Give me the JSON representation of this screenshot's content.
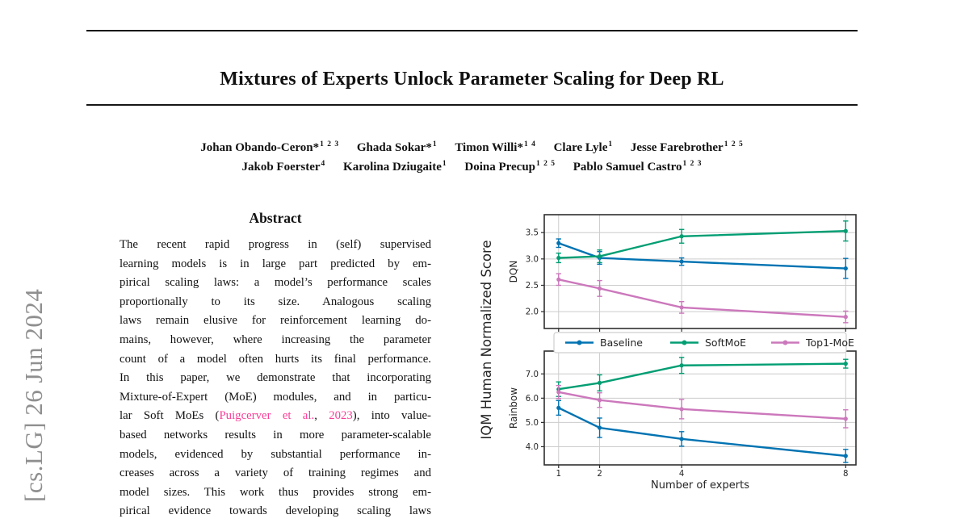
{
  "arxiv_stamp": "[cs.LG]  26 Jun 2024",
  "title": "Mixtures of Experts Unlock Parameter Scaling for Deep RL",
  "authors": {
    "line1": [
      {
        "name": "Johan Obando-Ceron*",
        "sup": "1 2 3"
      },
      {
        "name": "Ghada Sokar*",
        "sup": "1"
      },
      {
        "name": "Timon Willi*",
        "sup": "1 4"
      },
      {
        "name": "Clare Lyle",
        "sup": "1"
      },
      {
        "name": "Jesse Farebrother",
        "sup": "1 2 5"
      }
    ],
    "line2": [
      {
        "name": "Jakob Foerster",
        "sup": "4"
      },
      {
        "name": "Karolina Dziugaite",
        "sup": "1"
      },
      {
        "name": "Doina Precup",
        "sup": "1 2 5"
      },
      {
        "name": "Pablo Samuel Castro",
        "sup": "1 2 3"
      }
    ]
  },
  "abstract": {
    "heading": "Abstract",
    "lines_before": "The recent rapid progress in (self) supervised\nlearning models is in large part predicted by em-\npirical scaling laws: a model’s performance scales\nproportionally to its size.  Analogous scaling\nlaws remain elusive for reinforcement learning do-\nmains, however, where increasing the parameter\ncount of a model often hurts its final performance.\nIn this paper, we demonstrate that incorporating\nMixture-of-Expert (MoE) modules, and in particu-\nlar Soft MoEs (",
    "citation_authors": "Puigcerver et al.",
    "citation_separator": ", ",
    "citation_year": "2023",
    "lines_after": "), into value-\nbased networks results in more parameter-scalable\nmodels, evidenced by substantial performance in-\ncreases across a variety of training regimes and\nmodel sizes. This work thus provides strong em-\npirical evidence towards developing scaling laws"
  },
  "colors": {
    "citation_link": "#fa3d96",
    "stamp_gray": "#8f8f8f",
    "baseline_blue": "#0173b2",
    "softmoe_green": "#029e73",
    "top1moe_pink": "#cc78bc",
    "grid_gray": "#cccccc",
    "frame_gray": "#2e2e2e"
  },
  "figure": {
    "shared_ylabel": "IQM Human Normalized Score",
    "xlabel": "Number of experts",
    "legend": [
      {
        "label": "Baseline",
        "color": "#0173b2"
      },
      {
        "label": "SoftMoE",
        "color": "#029e73"
      },
      {
        "label": "Top1-MoE",
        "color": "#cc78bc"
      }
    ]
  },
  "chart_data": [
    {
      "type": "line",
      "panel_label": "DQN",
      "xscale": "linear",
      "x": [
        1,
        2,
        4,
        8
      ],
      "xticks": [
        1,
        2,
        4,
        8
      ],
      "show_x_tick_labels": false,
      "xlim": [
        0.65,
        8.25
      ],
      "ylim": [
        1.68,
        3.84
      ],
      "yticks": [
        2.0,
        2.5,
        3.0,
        3.5
      ],
      "grid": true,
      "series": [
        {
          "name": "Baseline",
          "color": "#0173b2",
          "values": [
            3.3,
            3.02,
            2.95,
            2.82
          ],
          "err": [
            0.08,
            0.12,
            0.07,
            0.19
          ]
        },
        {
          "name": "SoftMoE",
          "color": "#029e73",
          "values": [
            3.02,
            3.05,
            3.43,
            3.53
          ],
          "err": [
            0.09,
            0.12,
            0.13,
            0.19
          ]
        },
        {
          "name": "Top1-MoE",
          "color": "#cc78bc",
          "values": [
            2.61,
            2.44,
            2.08,
            1.9
          ],
          "err": [
            0.11,
            0.15,
            0.11,
            0.11
          ]
        }
      ]
    },
    {
      "type": "line",
      "panel_label": "Rainbow",
      "xscale": "linear",
      "x": [
        1,
        2,
        4,
        8
      ],
      "xticks": [
        1,
        2,
        4,
        8
      ],
      "show_x_tick_labels": true,
      "xlabel": "Number of experts",
      "xlim": [
        0.65,
        8.25
      ],
      "ylim": [
        3.25,
        7.94
      ],
      "yticks": [
        4.0,
        5.0,
        6.0,
        7.0
      ],
      "grid": true,
      "series": [
        {
          "name": "Baseline",
          "color": "#0173b2",
          "values": [
            5.6,
            4.78,
            4.32,
            3.62
          ],
          "err": [
            0.3,
            0.4,
            0.3,
            0.27
          ]
        },
        {
          "name": "SoftMoE",
          "color": "#029e73",
          "values": [
            6.37,
            6.63,
            7.35,
            7.42
          ],
          "err": [
            0.3,
            0.33,
            0.33,
            0.18
          ]
        },
        {
          "name": "Top1-MoE",
          "color": "#cc78bc",
          "values": [
            6.25,
            5.92,
            5.55,
            5.15
          ],
          "err": [
            0.27,
            0.3,
            0.4,
            0.37
          ]
        }
      ]
    }
  ]
}
